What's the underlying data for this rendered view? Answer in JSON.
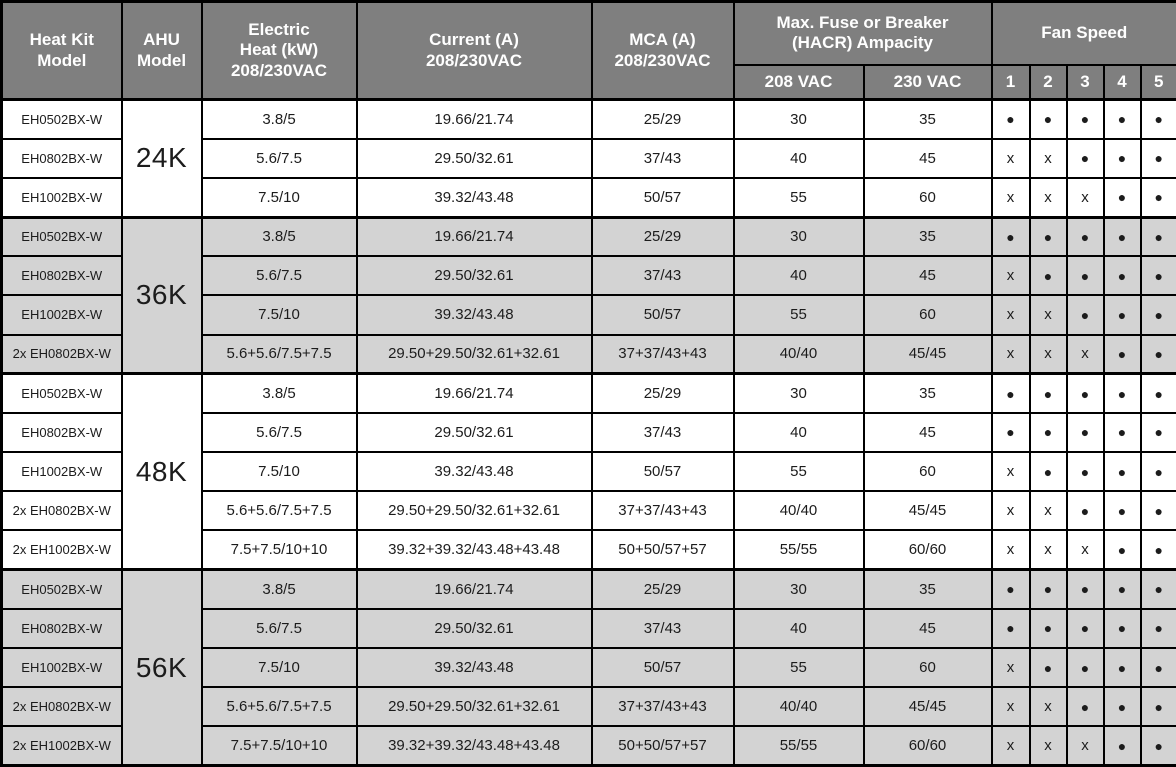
{
  "colors": {
    "header_bg": "#7f7f7f",
    "header_text": "#ffffff",
    "shaded_row_bg": "#d3d3d3",
    "row_bg": "#ffffff",
    "border": "#000000"
  },
  "table": {
    "headers": {
      "heat_kit_model": "Heat Kit\nModel",
      "ahu_model": "AHU\nModel",
      "electric_heat": "Electric\nHeat (kW)\n208/230VAC",
      "current": "Current (A)\n208/230VAC",
      "mca": "MCA (A)\n208/230VAC",
      "max_fuse": "Max. Fuse or Breaker\n(HACR) Ampacity",
      "fan_speed": "Fan Speed",
      "vac_208": "208 VAC",
      "vac_230": "230 VAC",
      "fan_speed_cols": [
        "1",
        "2",
        "3",
        "4",
        "5"
      ]
    },
    "symbols": {
      "dot": "●",
      "x": "x"
    },
    "groups": [
      {
        "ahu_model": "24K",
        "shaded": false,
        "rows": [
          {
            "heat_kit": "EH0502BX-W",
            "electric_heat": "3.8/5",
            "current": "19.66/21.74",
            "mca": "25/29",
            "fuse_208": "30",
            "fuse_230": "35",
            "fan": [
              "dot",
              "dot",
              "dot",
              "dot",
              "dot"
            ]
          },
          {
            "heat_kit": "EH0802BX-W",
            "electric_heat": "5.6/7.5",
            "current": "29.50/32.61",
            "mca": "37/43",
            "fuse_208": "40",
            "fuse_230": "45",
            "fan": [
              "x",
              "x",
              "dot",
              "dot",
              "dot"
            ]
          },
          {
            "heat_kit": "EH1002BX-W",
            "electric_heat": "7.5/10",
            "current": "39.32/43.48",
            "mca": "50/57",
            "fuse_208": "55",
            "fuse_230": "60",
            "fan": [
              "x",
              "x",
              "x",
              "dot",
              "dot"
            ]
          }
        ]
      },
      {
        "ahu_model": "36K",
        "shaded": true,
        "rows": [
          {
            "heat_kit": "EH0502BX-W",
            "electric_heat": "3.8/5",
            "current": "19.66/21.74",
            "mca": "25/29",
            "fuse_208": "30",
            "fuse_230": "35",
            "fan": [
              "dot",
              "dot",
              "dot",
              "dot",
              "dot"
            ]
          },
          {
            "heat_kit": "EH0802BX-W",
            "electric_heat": "5.6/7.5",
            "current": "29.50/32.61",
            "mca": "37/43",
            "fuse_208": "40",
            "fuse_230": "45",
            "fan": [
              "x",
              "dot",
              "dot",
              "dot",
              "dot"
            ]
          },
          {
            "heat_kit": "EH1002BX-W",
            "electric_heat": "7.5/10",
            "current": "39.32/43.48",
            "mca": "50/57",
            "fuse_208": "55",
            "fuse_230": "60",
            "fan": [
              "x",
              "x",
              "dot",
              "dot",
              "dot"
            ]
          },
          {
            "heat_kit": "2x EH0802BX-W",
            "electric_heat": "5.6+5.6/7.5+7.5",
            "current": "29.50+29.50/32.61+32.61",
            "mca": "37+37/43+43",
            "fuse_208": "40/40",
            "fuse_230": "45/45",
            "fan": [
              "x",
              "x",
              "x",
              "dot",
              "dot"
            ]
          }
        ]
      },
      {
        "ahu_model": "48K",
        "shaded": false,
        "rows": [
          {
            "heat_kit": "EH0502BX-W",
            "electric_heat": "3.8/5",
            "current": "19.66/21.74",
            "mca": "25/29",
            "fuse_208": "30",
            "fuse_230": "35",
            "fan": [
              "dot",
              "dot",
              "dot",
              "dot",
              "dot"
            ]
          },
          {
            "heat_kit": "EH0802BX-W",
            "electric_heat": "5.6/7.5",
            "current": "29.50/32.61",
            "mca": "37/43",
            "fuse_208": "40",
            "fuse_230": "45",
            "fan": [
              "dot",
              "dot",
              "dot",
              "dot",
              "dot"
            ]
          },
          {
            "heat_kit": "EH1002BX-W",
            "electric_heat": "7.5/10",
            "current": "39.32/43.48",
            "mca": "50/57",
            "fuse_208": "55",
            "fuse_230": "60",
            "fan": [
              "x",
              "dot",
              "dot",
              "dot",
              "dot"
            ]
          },
          {
            "heat_kit": "2x EH0802BX-W",
            "electric_heat": "5.6+5.6/7.5+7.5",
            "current": "29.50+29.50/32.61+32.61",
            "mca": "37+37/43+43",
            "fuse_208": "40/40",
            "fuse_230": "45/45",
            "fan": [
              "x",
              "x",
              "dot",
              "dot",
              "dot"
            ]
          },
          {
            "heat_kit": "2x EH1002BX-W",
            "electric_heat": "7.5+7.5/10+10",
            "current": "39.32+39.32/43.48+43.48",
            "mca": "50+50/57+57",
            "fuse_208": "55/55",
            "fuse_230": "60/60",
            "fan": [
              "x",
              "x",
              "x",
              "dot",
              "dot"
            ]
          }
        ]
      },
      {
        "ahu_model": "56K",
        "shaded": true,
        "rows": [
          {
            "heat_kit": "EH0502BX-W",
            "electric_heat": "3.8/5",
            "current": "19.66/21.74",
            "mca": "25/29",
            "fuse_208": "30",
            "fuse_230": "35",
            "fan": [
              "dot",
              "dot",
              "dot",
              "dot",
              "dot"
            ]
          },
          {
            "heat_kit": "EH0802BX-W",
            "electric_heat": "5.6/7.5",
            "current": "29.50/32.61",
            "mca": "37/43",
            "fuse_208": "40",
            "fuse_230": "45",
            "fan": [
              "dot",
              "dot",
              "dot",
              "dot",
              "dot"
            ]
          },
          {
            "heat_kit": "EH1002BX-W",
            "electric_heat": "7.5/10",
            "current": "39.32/43.48",
            "mca": "50/57",
            "fuse_208": "55",
            "fuse_230": "60",
            "fan": [
              "x",
              "dot",
              "dot",
              "dot",
              "dot"
            ]
          },
          {
            "heat_kit": "2x EH0802BX-W",
            "electric_heat": "5.6+5.6/7.5+7.5",
            "current": "29.50+29.50/32.61+32.61",
            "mca": "37+37/43+43",
            "fuse_208": "40/40",
            "fuse_230": "45/45",
            "fan": [
              "x",
              "x",
              "dot",
              "dot",
              "dot"
            ]
          },
          {
            "heat_kit": "2x EH1002BX-W",
            "electric_heat": "7.5+7.5/10+10",
            "current": "39.32+39.32/43.48+43.48",
            "mca": "50+50/57+57",
            "fuse_208": "55/55",
            "fuse_230": "60/60",
            "fan": [
              "x",
              "x",
              "x",
              "dot",
              "dot"
            ]
          }
        ]
      }
    ]
  }
}
